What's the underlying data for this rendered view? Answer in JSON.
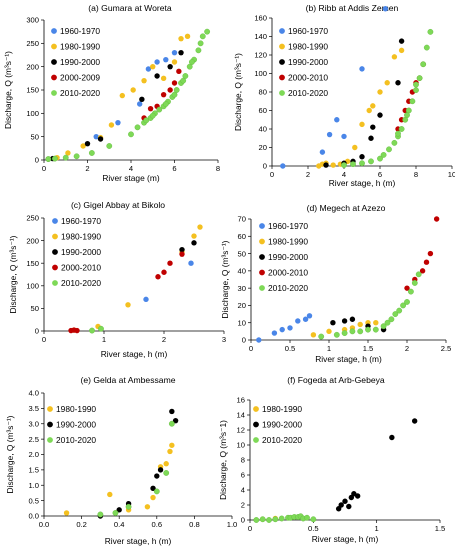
{
  "colors": {
    "1960-1970": "#4a86e8",
    "1980-1990": "#f4c020",
    "1990-2000": "#000000",
    "2000-2009": "#c00000",
    "2000-2010": "#c00000",
    "2010-2020": "#7ed957"
  },
  "chart_data": [
    {
      "type": "scatter",
      "title": "(a) Gumara at Woreta",
      "xlabel": "River stage (m)",
      "ylabel": "Discharge, Q (m³s⁻¹)",
      "xlim": [
        0,
        8
      ],
      "ylim": [
        0,
        300
      ],
      "xticks": [
        0,
        2,
        4,
        6,
        8
      ],
      "yticks": [
        0,
        50,
        100,
        150,
        200,
        250,
        300
      ],
      "xtick_labels": [
        "0",
        "2",
        "4",
        "6",
        "8"
      ],
      "ytick_labels": [
        "0",
        "50",
        "100",
        "150",
        "200",
        "250",
        "300"
      ],
      "grid": false,
      "legend_position": "top-left",
      "series": [
        {
          "name": "1960-1970",
          "x": [
            2.4,
            3.4,
            4.4,
            4.8,
            5.2,
            5.6,
            6.0
          ],
          "y": [
            50,
            80,
            120,
            195,
            210,
            215,
            230
          ]
        },
        {
          "name": "1980-1990",
          "x": [
            0.6,
            1.1,
            1.8,
            2.6,
            3.1,
            3.6,
            4.1,
            4.6,
            5.0,
            5.5,
            6.0,
            6.3,
            6.6
          ],
          "y": [
            5,
            15,
            30,
            48,
            75,
            138,
            150,
            170,
            200,
            175,
            210,
            260,
            265
          ]
        },
        {
          "name": "1990-2000",
          "x": [
            0.2,
            0.4,
            2.0,
            2.6,
            4.5,
            5.2,
            5.8,
            6.3
          ],
          "y": [
            2,
            3,
            35,
            45,
            130,
            180,
            200,
            230
          ]
        },
        {
          "name": "2000-2009",
          "x": [
            4.6,
            4.9,
            5.2,
            5.5,
            5.8,
            6.0,
            6.2
          ],
          "y": [
            90,
            110,
            115,
            140,
            150,
            165,
            190
          ]
        },
        {
          "name": "2010-2020",
          "x": [
            0.2,
            0.5,
            1.0,
            1.5,
            2.2,
            3.0,
            4.0,
            4.3,
            4.6,
            4.9,
            5.1,
            5.3,
            5.5,
            5.7,
            5.9,
            6.1,
            6.3,
            6.5,
            6.7,
            6.9,
            7.1,
            7.3,
            7.5,
            6.0,
            5.6,
            5.0,
            4.7,
            6.4,
            6.8,
            7.2
          ],
          "y": [
            2,
            3,
            5,
            8,
            15,
            30,
            55,
            70,
            80,
            90,
            100,
            108,
            115,
            125,
            135,
            150,
            165,
            180,
            200,
            215,
            235,
            265,
            275,
            140,
            120,
            95,
            85,
            170,
            210,
            250
          ]
        }
      ]
    },
    {
      "type": "scatter",
      "title": "(b) Ribb at Addis Zemen",
      "xlabel": "River stage, h (m)",
      "ylabel": "Discharge, Q (m³s⁻¹)",
      "xlim": [
        0,
        10
      ],
      "ylim": [
        0,
        160
      ],
      "xticks": [
        0,
        2,
        4,
        6,
        8,
        10
      ],
      "yticks": [
        0,
        20,
        40,
        60,
        80,
        100,
        120,
        140,
        160
      ],
      "xtick_labels": [
        "0",
        "2",
        "4",
        "6",
        "8",
        "10"
      ],
      "ytick_labels": [
        "0",
        "20",
        "40",
        "60",
        "80",
        "100",
        "120",
        "140",
        "160"
      ],
      "grid": false,
      "legend_position": "top-left",
      "series": [
        {
          "name": "1960-1970",
          "x": [
            0.6,
            2.8,
            3.2,
            3.6,
            4.0,
            5.0,
            6.3
          ],
          "y": [
            0,
            15,
            34,
            50,
            32,
            105,
            170
          ]
        },
        {
          "name": "1980-1990",
          "x": [
            2.6,
            2.8,
            3.0,
            3.4,
            3.8,
            4.2,
            4.6,
            5.0,
            5.4,
            5.6,
            6.0,
            6.4,
            6.8,
            7.2
          ],
          "y": [
            0,
            2,
            3,
            1,
            2,
            5,
            20,
            45,
            60,
            65,
            80,
            90,
            118,
            125
          ]
        },
        {
          "name": "1990-2000",
          "x": [
            3.0,
            4.0,
            4.5,
            5.0,
            5.5,
            5.6,
            6.0,
            7.0,
            7.2
          ],
          "y": [
            1,
            3,
            5,
            10,
            30,
            42,
            55,
            90,
            135
          ]
        },
        {
          "name": "2000-2010",
          "x": [
            7.0,
            7.2,
            7.4,
            7.6,
            7.8,
            8.0,
            8.2,
            8.4
          ],
          "y": [
            40,
            50,
            60,
            70,
            80,
            90,
            95,
            110
          ]
        },
        {
          "name": "2010-2020",
          "x": [
            4.0,
            4.5,
            5.0,
            5.5,
            6.0,
            6.2,
            6.5,
            6.8,
            7.0,
            7.2,
            7.4,
            7.6,
            7.8,
            8.0,
            8.2,
            8.4,
            8.6,
            8.8,
            8.0,
            7.5,
            7.0
          ],
          "y": [
            1,
            2,
            3,
            5,
            8,
            12,
            18,
            25,
            32,
            40,
            50,
            60,
            70,
            82,
            95,
            110,
            128,
            145,
            88,
            55,
            35
          ]
        }
      ]
    },
    {
      "type": "scatter",
      "title": "(c) Gigel Abbay at Bikolo",
      "xlabel": "River stage, h (m)",
      "ylabel": "Discharge, Q (m³s⁻¹)",
      "xlim": [
        0,
        3
      ],
      "ylim": [
        0,
        250
      ],
      "xticks": [
        0,
        1,
        2,
        3
      ],
      "yticks": [
        0,
        50,
        100,
        150,
        200,
        250
      ],
      "xtick_labels": [
        "0",
        "1",
        "2",
        "3"
      ],
      "ytick_labels": [
        "0",
        "50",
        "100",
        "150",
        "200",
        "250"
      ],
      "grid": false,
      "legend_position": "top-left",
      "series": [
        {
          "name": "1960-1970",
          "x": [
            1.7,
            2.45
          ],
          "y": [
            70,
            150
          ]
        },
        {
          "name": "1980-1990",
          "x": [
            0.5,
            0.9,
            1.4,
            2.3,
            2.5,
            2.6
          ],
          "y": [
            2,
            10,
            58,
            175,
            210,
            230
          ]
        },
        {
          "name": "1990-2000",
          "x": [
            2.3,
            2.5
          ],
          "y": [
            180,
            195
          ]
        },
        {
          "name": "2000-2010",
          "x": [
            0.45,
            0.5,
            0.55,
            1.9,
            2.0,
            2.1,
            2.3
          ],
          "y": [
            1,
            2,
            1,
            120,
            130,
            150,
            170
          ]
        },
        {
          "name": "2010-2020",
          "x": [
            0.8,
            0.95
          ],
          "y": [
            1,
            5
          ]
        }
      ]
    },
    {
      "type": "scatter",
      "title": "(d) Megech at Azezo",
      "xlabel": "River stage, h (m)",
      "ylabel": "Discharge, Q (m³s⁻¹)",
      "xlim": [
        0,
        2.5
      ],
      "ylim": [
        0,
        70
      ],
      "xticks": [
        0,
        0.5,
        1,
        1.5,
        2,
        2.5
      ],
      "yticks": [
        0,
        10,
        20,
        30,
        40,
        50,
        60,
        70
      ],
      "xtick_labels": [
        "0",
        "0.5",
        "1",
        "1.5",
        "2",
        "2.5"
      ],
      "ytick_labels": [
        "0",
        "10",
        "20",
        "30",
        "40",
        "50",
        "60",
        "70"
      ],
      "grid": false,
      "legend_position": "top-left",
      "series": [
        {
          "name": "1960-1970",
          "x": [
            0.1,
            0.3,
            0.4,
            0.5,
            0.6,
            0.7,
            0.75
          ],
          "y": [
            0,
            4,
            6,
            7,
            11,
            12,
            14
          ]
        },
        {
          "name": "1980-1990",
          "x": [
            0.8,
            1.0,
            1.2,
            1.3,
            1.4,
            1.5,
            1.6
          ],
          "y": [
            3,
            5,
            6,
            7,
            9,
            10,
            10
          ]
        },
        {
          "name": "1990-2000",
          "x": [
            1.05,
            1.2,
            1.3,
            1.5,
            1.7
          ],
          "y": [
            10,
            11,
            12,
            8,
            6
          ]
        },
        {
          "name": "2000-2010",
          "x": [
            2.0,
            2.1,
            2.2,
            2.25,
            2.3,
            2.38
          ],
          "y": [
            30,
            35,
            40,
            45,
            50,
            70
          ]
        },
        {
          "name": "2010-2020",
          "x": [
            0.9,
            1.1,
            1.2,
            1.3,
            1.4,
            1.5,
            1.6,
            1.7,
            1.75,
            1.8,
            1.85,
            1.9,
            1.95,
            2.0,
            2.05,
            2.1,
            2.15
          ],
          "y": [
            2,
            3,
            4,
            5,
            5,
            6,
            6,
            8,
            10,
            12,
            15,
            17,
            20,
            22,
            28,
            33,
            38
          ]
        }
      ]
    },
    {
      "type": "scatter",
      "title": "(e) Gelda at Ambessame",
      "xlabel": "River stage, h (m)",
      "ylabel": "Discharge, Q (m³s⁻¹)",
      "xlim": [
        0,
        1
      ],
      "ylim": [
        0,
        4
      ],
      "xticks": [
        0,
        0.2,
        0.4,
        0.6,
        0.8,
        1
      ],
      "yticks": [
        0,
        0.5,
        1,
        1.5,
        2,
        2.5,
        3,
        3.5,
        4
      ],
      "xtick_labels": [
        "0.0",
        "0.2",
        "0.4",
        "0.6",
        "0.8",
        "1.0"
      ],
      "ytick_labels": [
        "0.0",
        "0.5",
        "1.0",
        "1.5",
        "2.0",
        "2.5",
        "3.0",
        "3.5",
        "4.0"
      ],
      "grid": false,
      "legend_position": "top-left",
      "series": [
        {
          "name": "1980-1990",
          "x": [
            0.12,
            0.35,
            0.45,
            0.55,
            0.58,
            0.62,
            0.65,
            0.67,
            0.68
          ],
          "y": [
            0.1,
            0.7,
            0.2,
            0.3,
            0.6,
            1.6,
            1.7,
            2.1,
            2.3
          ]
        },
        {
          "name": "1990-2000",
          "x": [
            0.3,
            0.4,
            0.45,
            0.58,
            0.6,
            0.62,
            0.68,
            0.7
          ],
          "y": [
            0.0,
            0.2,
            0.4,
            0.9,
            1.3,
            1.5,
            3.4,
            3.1
          ]
        },
        {
          "name": "2010-2020",
          "x": [
            0.3,
            0.38,
            0.45,
            0.6,
            0.65,
            0.68
          ],
          "y": [
            0.05,
            0.1,
            0.3,
            0.8,
            1.4,
            3.0
          ]
        }
      ]
    },
    {
      "type": "scatter",
      "title": "(f) Fogeda at Arb-Gebeya",
      "xlabel": "River stage, h (m)",
      "ylabel": "Discharge, Q (m³s⁻1)",
      "xlim": [
        0,
        1.5
      ],
      "ylim": [
        0,
        16
      ],
      "xticks": [
        0,
        0.5,
        1,
        1.5
      ],
      "yticks": [
        0,
        2,
        4,
        6,
        8,
        10,
        12,
        14,
        16
      ],
      "xtick_labels": [
        "0",
        "0.5",
        "1",
        "1.5"
      ],
      "ytick_labels": [
        "0",
        "2",
        "4",
        "6",
        "8",
        "10",
        "12",
        "14",
        "16"
      ],
      "grid": false,
      "legend_position": "top-left",
      "series": [
        {
          "name": "1980-1990",
          "x": [
            0.1,
            0.2
          ],
          "y": [
            0.1,
            0.2
          ]
        },
        {
          "name": "1990-2000",
          "x": [
            0.7,
            0.72,
            0.75,
            0.78,
            0.8,
            0.82,
            0.85,
            1.12,
            1.3
          ],
          "y": [
            1.5,
            2.0,
            2.5,
            1.8,
            3.0,
            3.5,
            3.2,
            11.0,
            13.2
          ]
        },
        {
          "name": "2010-2020",
          "x": [
            0.05,
            0.1,
            0.15,
            0.2,
            0.25,
            0.3,
            0.32,
            0.35,
            0.38,
            0.4,
            0.42,
            0.45,
            0.5
          ],
          "y": [
            0,
            0.1,
            0,
            0.1,
            0.2,
            0.3,
            0.3,
            0.4,
            0.4,
            0.5,
            0.2,
            0.3,
            0.1
          ]
        }
      ]
    }
  ]
}
